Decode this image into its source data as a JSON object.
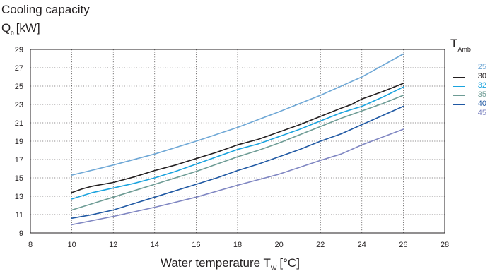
{
  "chart_data": {
    "type": "line",
    "title": "",
    "ylabel_line1": "Cooling capacity",
    "ylabel_symbol": "Q",
    "ylabel_subscript": "0",
    "ylabel_unit": "[kW]",
    "xlabel_text": "Water temperature T",
    "xlabel_subscript": "W",
    "xlabel_unit": "[°C]",
    "xlim": [
      8,
      28
    ],
    "ylim": [
      9,
      29
    ],
    "xticks": [
      8,
      10,
      12,
      14,
      16,
      18,
      20,
      22,
      24,
      26,
      28
    ],
    "yticks": [
      9,
      11,
      13,
      15,
      17,
      19,
      21,
      23,
      25,
      27,
      29
    ],
    "grid": true,
    "legend_title_symbol": "T",
    "legend_title_subscript": "Amb",
    "legend_position": "right",
    "series": [
      {
        "name": "25",
        "color": "#6fa8d6",
        "x": [
          10,
          12,
          14,
          16,
          18,
          20,
          22,
          24,
          26
        ],
        "y": [
          15.3,
          16.4,
          17.6,
          19.0,
          20.5,
          22.2,
          24.0,
          26.0,
          28.5
        ]
      },
      {
        "name": "30",
        "color": "#231f20",
        "x": [
          10,
          10.5,
          11,
          12,
          13,
          14,
          15,
          16,
          17,
          18,
          19,
          20,
          21,
          22,
          23,
          23.5,
          24,
          25,
          26
        ],
        "y": [
          13.4,
          13.8,
          14.1,
          14.5,
          15.1,
          15.8,
          16.4,
          17.1,
          17.8,
          18.6,
          19.2,
          20.0,
          20.8,
          21.7,
          22.6,
          23.0,
          23.6,
          24.4,
          25.3
        ]
      },
      {
        "name": "32",
        "color": "#1aa3de",
        "x": [
          10,
          11,
          12,
          13,
          14,
          15,
          16,
          17,
          18,
          19,
          20,
          21,
          22,
          23,
          24,
          25,
          26
        ],
        "y": [
          12.7,
          13.4,
          13.9,
          14.4,
          15.0,
          15.7,
          16.5,
          17.3,
          18.1,
          18.7,
          19.5,
          20.3,
          21.2,
          22.1,
          22.8,
          23.8,
          24.9
        ]
      },
      {
        "name": "35",
        "color": "#6e9c95",
        "x": [
          10,
          11,
          12,
          13,
          14,
          15,
          16,
          17,
          18,
          19,
          20,
          21,
          22,
          23,
          24,
          25,
          26
        ],
        "y": [
          11.5,
          12.2,
          12.9,
          13.6,
          14.3,
          15.0,
          15.7,
          16.5,
          17.3,
          18.0,
          18.8,
          19.7,
          20.6,
          21.5,
          22.3,
          23.1,
          24.0
        ]
      },
      {
        "name": "40",
        "color": "#1f58a3",
        "x": [
          10,
          11,
          12,
          13,
          14,
          15,
          16,
          17,
          18,
          19,
          20,
          21,
          22,
          23,
          24,
          25,
          26
        ],
        "y": [
          10.6,
          11.0,
          11.5,
          12.2,
          12.9,
          13.6,
          14.3,
          15.0,
          15.8,
          16.5,
          17.3,
          18.1,
          19.0,
          19.8,
          20.8,
          21.8,
          22.8
        ]
      },
      {
        "name": "45",
        "color": "#7f86c2",
        "x": [
          10,
          12,
          14,
          16,
          18,
          20,
          22,
          23,
          24,
          26
        ],
        "y": [
          9.9,
          10.8,
          11.8,
          12.9,
          14.2,
          15.4,
          16.9,
          17.6,
          18.6,
          20.3
        ]
      }
    ]
  }
}
